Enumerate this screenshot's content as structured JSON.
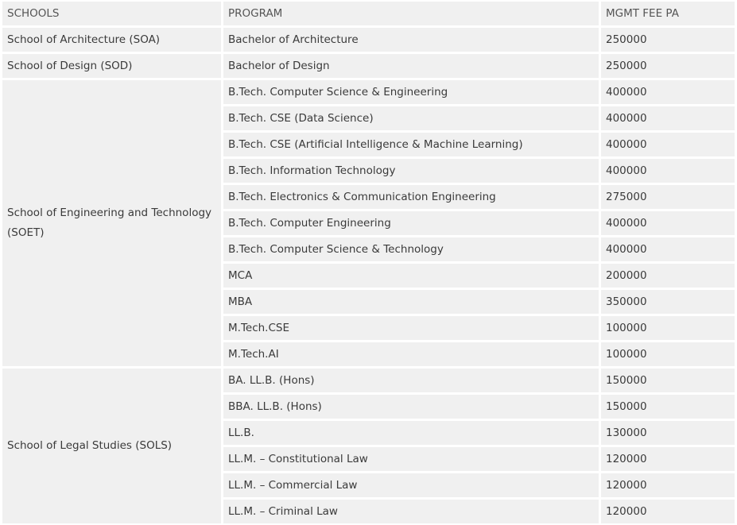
{
  "table": {
    "header": [
      "SCHOOLS",
      "PROGRAM",
      "MGMT FEE PA"
    ],
    "groups": [
      {
        "school": "School of Architecture (SOA)",
        "programs": [
          {
            "program": "Bachelor of Architecture",
            "fee": 250000
          }
        ]
      },
      {
        "school": "School of Design (SOD)",
        "programs": [
          {
            "program": "Bachelor of Design",
            "fee": 250000
          }
        ]
      },
      {
        "school": "School of Engineering and Technology (SOET)",
        "programs": [
          {
            "program": "B.Tech. Computer Science & Engineering",
            "fee": 400000
          },
          {
            "program": "B.Tech. CSE (Data Science)",
            "fee": 400000
          },
          {
            "program": "B.Tech. CSE (Artificial Intelligence & Machine Learning)",
            "fee": 400000
          },
          {
            "program": "B.Tech. Information Technology",
            "fee": 400000
          },
          {
            "program": "B.Tech. Electronics & Communication Engineering",
            "fee": 275000
          },
          {
            "program": "B.Tech. Computer Engineering",
            "fee": 400000
          },
          {
            "program": "B.Tech. Computer Science & Technology",
            "fee": 400000
          },
          {
            "program": "MCA",
            "fee": 200000
          },
          {
            "program": "MBA",
            "fee": 350000
          },
          {
            "program": "M.Tech.CSE",
            "fee": 100000
          },
          {
            "program": "M.Tech.AI",
            "fee": 100000
          }
        ]
      },
      {
        "school": "School of Legal Studies (SOLS)",
        "programs": [
          {
            "program": "BA. LL.B. (Hons)",
            "fee": 150000
          },
          {
            "program": "BBA. LL.B. (Hons)",
            "fee": 150000
          },
          {
            "program": "LL.B.",
            "fee": 130000
          },
          {
            "program": "LL.M. – Constitutional Law",
            "fee": 120000
          },
          {
            "program": "LL.M. – Commercial Law",
            "fee": 120000
          },
          {
            "program": "LL.M. – Criminal Law",
            "fee": 120000
          }
        ]
      }
    ]
  }
}
